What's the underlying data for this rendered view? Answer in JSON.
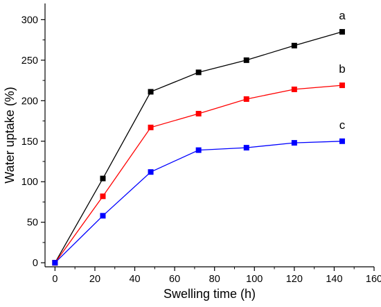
{
  "chart_data": {
    "type": "line",
    "title": "",
    "xlabel": "Swelling time (h)",
    "ylabel": "Water uptake (%)",
    "xlim": [
      -5,
      160
    ],
    "ylim": [
      -5,
      320
    ],
    "xticks": [
      0,
      20,
      40,
      60,
      80,
      100,
      120,
      140,
      160
    ],
    "yticks": [
      0,
      50,
      100,
      150,
      200,
      250,
      300
    ],
    "grid": false,
    "legend": "none",
    "x": [
      0,
      24,
      48,
      72,
      96,
      120,
      144
    ],
    "series": [
      {
        "name": "a",
        "color": "#000000",
        "values": [
          0,
          104,
          211,
          235,
          250,
          268,
          285
        ]
      },
      {
        "name": "b",
        "color": "#ff0000",
        "values": [
          0,
          82,
          167,
          184,
          202,
          214,
          219
        ]
      },
      {
        "name": "c",
        "color": "#0000ff",
        "values": [
          0,
          58,
          112,
          139,
          142,
          148,
          150
        ]
      }
    ],
    "marker": "square"
  }
}
